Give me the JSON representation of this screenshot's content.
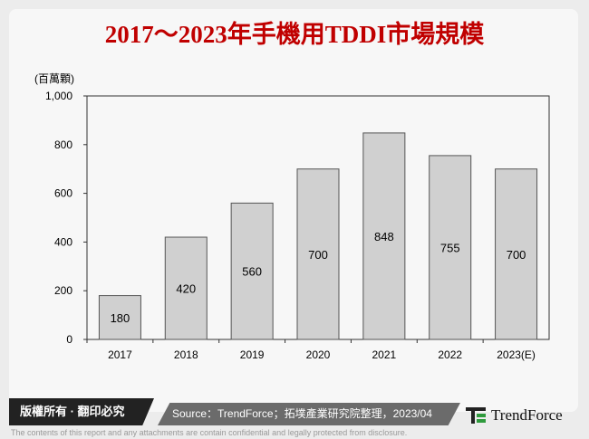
{
  "title": "2017～2023年手機用TDDI市場規模",
  "footer": {
    "copyright": "版權所有 · 翻印必究",
    "source": "Source：TrendForce；拓墣產業研究院整理，2023/04",
    "logo_text": "TrendForce",
    "disclaimer": "The contents of this report and any attachments are contain confidential and legally protected from disclosure."
  },
  "colors": {
    "title": "#c00000",
    "bar": "#d0d0d0",
    "bar_border": "#555555"
  },
  "chart_data": {
    "type": "bar",
    "title": "2017～2023年手機用TDDI市場規模",
    "ylabel": "(百萬顆)",
    "categories": [
      "2017",
      "2018",
      "2019",
      "2020",
      "2021",
      "2022",
      "2023(E)"
    ],
    "values": [
      180,
      420,
      560,
      700,
      848,
      755,
      700
    ],
    "data_labels": [
      "180",
      "420",
      "560",
      "700",
      "848",
      "755",
      "700"
    ],
    "ylim": [
      0,
      1000
    ],
    "yticks": [
      "0",
      "200",
      "400",
      "600",
      "800",
      "1,000"
    ],
    "grid": false,
    "legend": "none"
  }
}
